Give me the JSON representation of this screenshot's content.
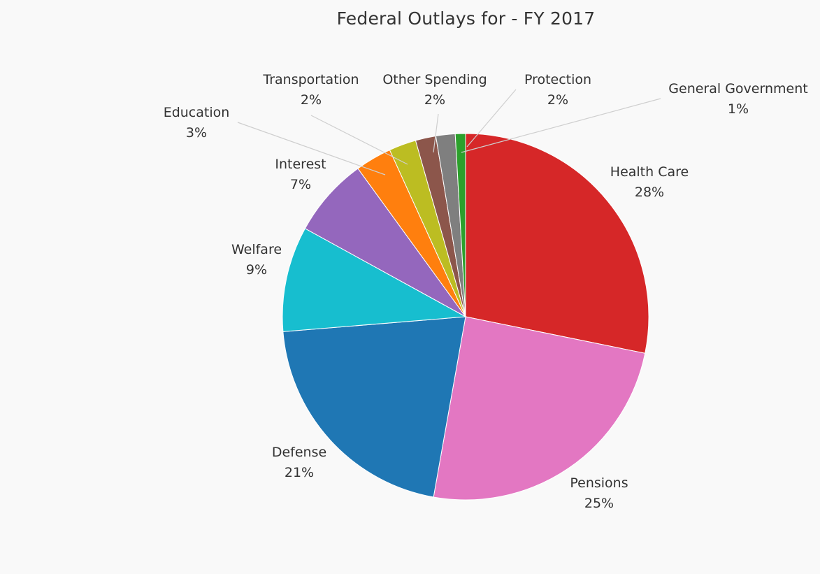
{
  "chart_data": {
    "type": "pie",
    "title": "Federal Outlays for - FY 2017",
    "slices": [
      {
        "label": "Health Care",
        "pct_label": "28%",
        "value": 28.2,
        "color": "#d62728"
      },
      {
        "label": "Pensions",
        "pct_label": "25%",
        "value": 24.6,
        "color": "#e377c2"
      },
      {
        "label": "Defense",
        "pct_label": "21%",
        "value": 20.9,
        "color": "#1f77b4"
      },
      {
        "label": "Welfare",
        "pct_label": "9%",
        "value": 9.3,
        "color": "#17becf"
      },
      {
        "label": "Interest",
        "pct_label": "7%",
        "value": 7.0,
        "color": "#9467bd"
      },
      {
        "label": "Education",
        "pct_label": "3%",
        "value": 3.2,
        "color": "#ff7f0e"
      },
      {
        "label": "Transportation",
        "pct_label": "2%",
        "value": 2.4,
        "color": "#bcbd22"
      },
      {
        "label": "Other Spending",
        "pct_label": "2%",
        "value": 1.8,
        "color": "#8c564b"
      },
      {
        "label": "Protection",
        "pct_label": "2%",
        "value": 1.7,
        "color": "#7f7f7f"
      },
      {
        "label": "General Government",
        "pct_label": "1%",
        "value": 0.9,
        "color": "#2ca02c"
      }
    ]
  }
}
